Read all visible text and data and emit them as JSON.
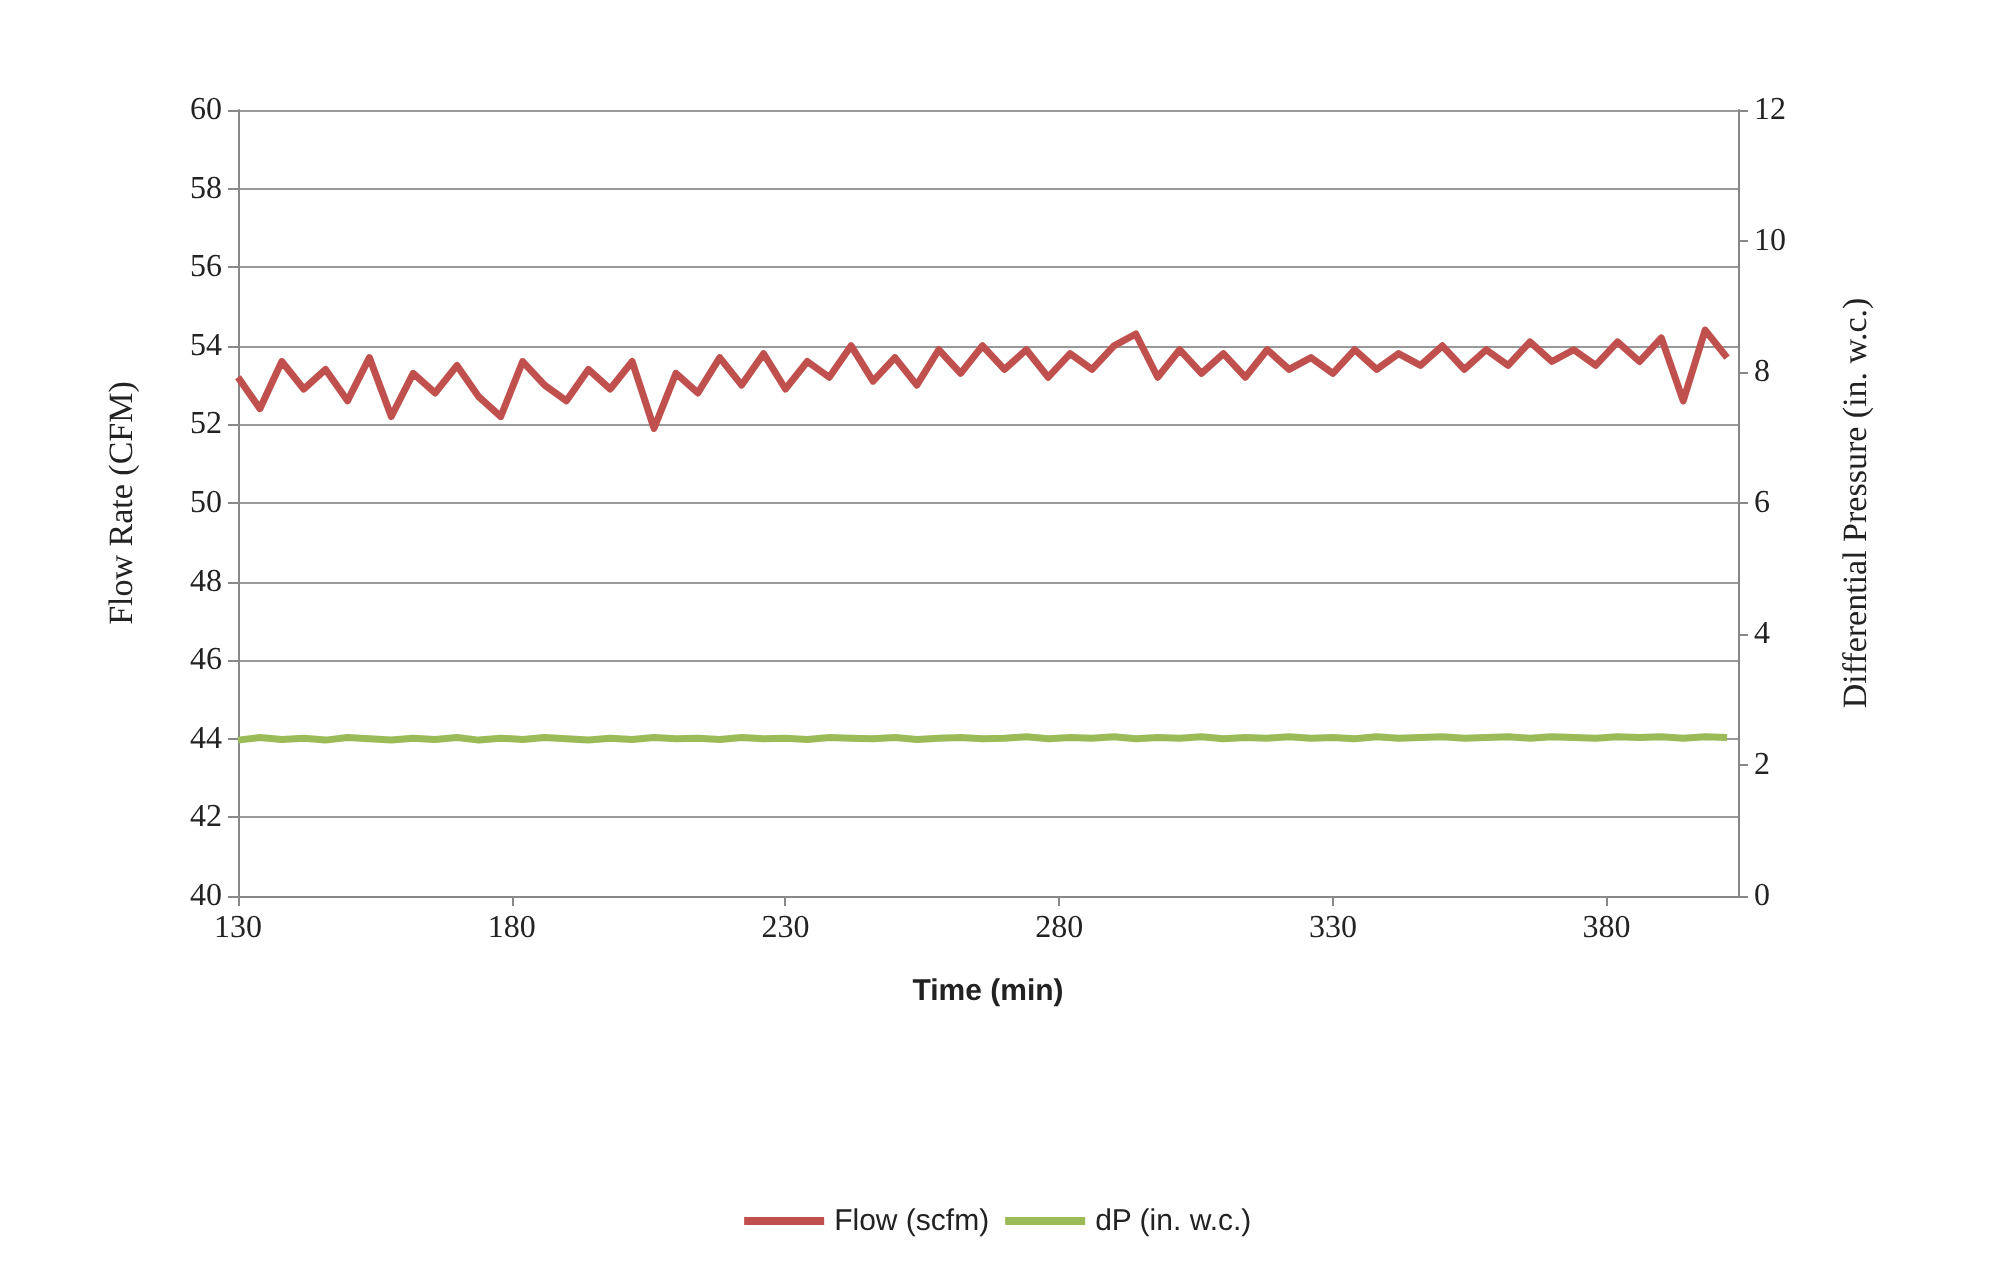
{
  "chart_data": {
    "type": "line",
    "xlabel": "Time (min)",
    "ylabel": "Flow Rate (CFM)",
    "y2label": "Differential Pressure (in. w.c.)",
    "xlim": [
      130,
      404
    ],
    "xticks": [
      130,
      180,
      230,
      280,
      330,
      380
    ],
    "ylim": [
      40,
      60
    ],
    "yticks": [
      40,
      42,
      44,
      46,
      48,
      50,
      52,
      54,
      56,
      58,
      60
    ],
    "y2lim": [
      0,
      12
    ],
    "y2ticks": [
      0,
      2,
      4,
      6,
      8,
      10,
      12
    ],
    "grid": "y",
    "legend": "bottom",
    "marker": "none",
    "line_style": "solid",
    "x": [
      130,
      134,
      138,
      142,
      146,
      150,
      154,
      158,
      162,
      166,
      170,
      174,
      178,
      182,
      186,
      190,
      194,
      198,
      202,
      206,
      210,
      214,
      218,
      222,
      226,
      230,
      234,
      238,
      242,
      246,
      250,
      254,
      258,
      262,
      266,
      270,
      274,
      278,
      282,
      286,
      290,
      294,
      298,
      302,
      306,
      310,
      314,
      318,
      322,
      326,
      330,
      334,
      338,
      342,
      346,
      350,
      354,
      358,
      362,
      366,
      370,
      374,
      378,
      382,
      386,
      390,
      394,
      398,
      402
    ],
    "series": [
      {
        "name": "Flow (scfm)",
        "color": "#c0504d",
        "values": [
          53.2,
          52.4,
          53.6,
          52.9,
          53.4,
          52.6,
          53.7,
          52.2,
          53.3,
          52.8,
          53.5,
          52.7,
          52.2,
          53.6,
          53.0,
          52.6,
          53.4,
          52.9,
          53.6,
          51.9,
          53.3,
          52.8,
          53.7,
          53.0,
          53.8,
          52.9,
          53.6,
          53.2,
          54.0,
          53.1,
          53.7,
          53.0,
          53.9,
          53.3,
          54.0,
          53.4,
          53.9,
          53.2,
          53.8,
          53.4,
          54.0,
          54.3,
          53.2,
          53.9,
          53.3,
          53.8,
          53.2,
          53.9,
          53.4,
          53.7,
          53.3,
          53.9,
          53.4,
          53.8,
          53.5,
          54.0,
          53.4,
          53.9,
          53.5,
          54.1,
          53.6,
          53.9,
          53.5,
          54.1,
          53.6,
          54.2,
          52.6,
          54.4,
          53.7
        ]
      },
      {
        "name": "dP (in. w.c.)",
        "color": "#9bbb59",
        "axis": "y2",
        "values": [
          2.38,
          2.42,
          2.39,
          2.41,
          2.38,
          2.42,
          2.4,
          2.38,
          2.41,
          2.39,
          2.42,
          2.38,
          2.41,
          2.39,
          2.42,
          2.4,
          2.38,
          2.41,
          2.39,
          2.42,
          2.4,
          2.41,
          2.39,
          2.42,
          2.4,
          2.41,
          2.39,
          2.42,
          2.41,
          2.4,
          2.42,
          2.39,
          2.41,
          2.42,
          2.4,
          2.41,
          2.43,
          2.4,
          2.42,
          2.41,
          2.43,
          2.4,
          2.42,
          2.41,
          2.43,
          2.4,
          2.42,
          2.41,
          2.43,
          2.41,
          2.42,
          2.4,
          2.43,
          2.41,
          2.42,
          2.43,
          2.41,
          2.42,
          2.43,
          2.41,
          2.43,
          2.42,
          2.41,
          2.43,
          2.42,
          2.43,
          2.41,
          2.43,
          2.42
        ]
      }
    ]
  }
}
